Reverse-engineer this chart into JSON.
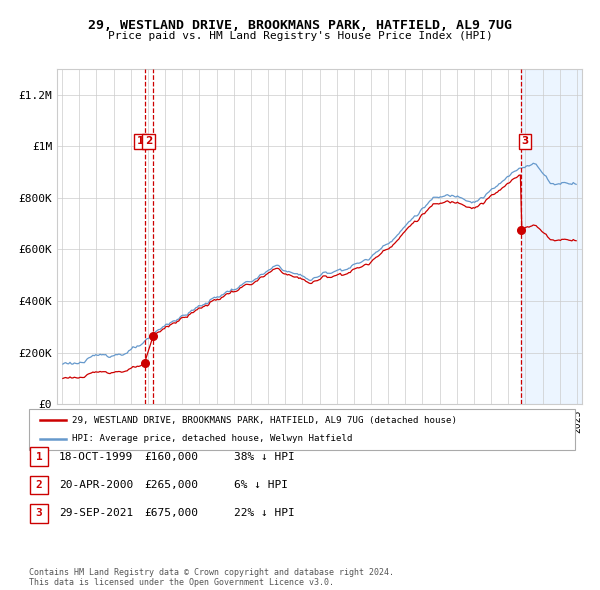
{
  "title": "29, WESTLAND DRIVE, BROOKMANS PARK, HATFIELD, AL9 7UG",
  "subtitle": "Price paid vs. HM Land Registry's House Price Index (HPI)",
  "sale_prices": [
    160000,
    265000,
    675000
  ],
  "legend_line1": "29, WESTLAND DRIVE, BROOKMANS PARK, HATFIELD, AL9 7UG (detached house)",
  "legend_line2": "HPI: Average price, detached house, Welwyn Hatfield",
  "table_rows": [
    [
      "1",
      "18-OCT-1999",
      "£160,000",
      "38% ↓ HPI"
    ],
    [
      "2",
      "20-APR-2000",
      "£265,000",
      "6% ↓ HPI"
    ],
    [
      "3",
      "29-SEP-2021",
      "£675,000",
      "22% ↓ HPI"
    ]
  ],
  "footer": "Contains HM Land Registry data © Crown copyright and database right 2024.\nThis data is licensed under the Open Government Licence v3.0.",
  "red_color": "#cc0000",
  "blue_color": "#6699cc",
  "bg_future": "#ddeeff",
  "vline_color": "#cc0000",
  "grid_color": "#cccccc",
  "ylim": [
    0,
    1300000
  ],
  "yticks": [
    0,
    200000,
    400000,
    600000,
    800000,
    1000000,
    1200000
  ],
  "ytick_labels": [
    "£0",
    "£200K",
    "£400K",
    "£600K",
    "£800K",
    "£1M",
    "£1.2M"
  ]
}
